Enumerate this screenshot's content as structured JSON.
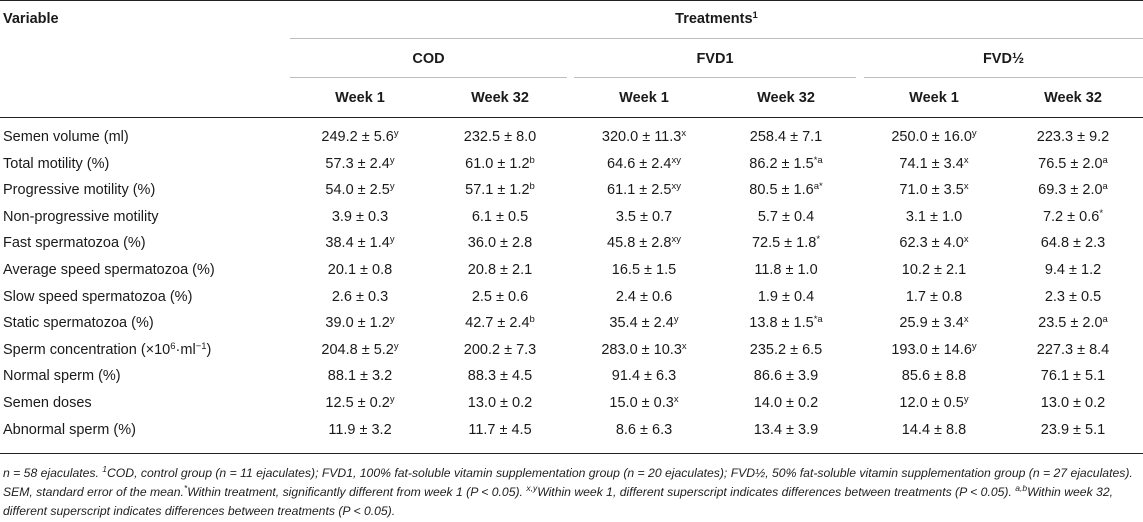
{
  "header": {
    "variable": "Variable",
    "treatments": "Treatments",
    "treatments_sup": "1",
    "groups": [
      "COD",
      "FVD1",
      "FVD½"
    ],
    "weeks": [
      "Week 1",
      "Week 32",
      "Week 1",
      "Week 32",
      "Week 1",
      "Week 32"
    ]
  },
  "rows": [
    {
      "label": "Semen volume (ml)",
      "cells": [
        [
          "249.2 ± 5.6",
          "y"
        ],
        [
          "232.5 ± 8.0",
          ""
        ],
        [
          "320.0 ± 11.3",
          "x"
        ],
        [
          "258.4 ± 7.1",
          ""
        ],
        [
          "250.0 ± 16.0",
          "y"
        ],
        [
          "223.3 ± 9.2",
          ""
        ]
      ]
    },
    {
      "label": "Total motility (%)",
      "cells": [
        [
          "57.3 ± 2.4",
          "y"
        ],
        [
          "61.0 ± 1.2",
          "b"
        ],
        [
          "64.6 ± 2.4",
          "xy"
        ],
        [
          "86.2 ± 1.5",
          "*a"
        ],
        [
          "74.1 ± 3.4",
          "x"
        ],
        [
          "76.5 ± 2.0",
          "a"
        ]
      ]
    },
    {
      "label": "Progressive motility (%)",
      "cells": [
        [
          "54.0 ± 2.5",
          "y"
        ],
        [
          "57.1 ± 1.2",
          "b"
        ],
        [
          "61.1 ± 2.5",
          "xy"
        ],
        [
          "80.5 ± 1.6",
          "a*"
        ],
        [
          "71.0 ± 3.5",
          "x"
        ],
        [
          "69.3 ± 2.0",
          "a"
        ]
      ]
    },
    {
      "label": "Non-progressive motility",
      "cells": [
        [
          "3.9 ± 0.3",
          ""
        ],
        [
          "6.1 ± 0.5",
          ""
        ],
        [
          "3.5 ± 0.7",
          ""
        ],
        [
          "5.7 ± 0.4",
          ""
        ],
        [
          "3.1 ± 1.0",
          ""
        ],
        [
          "7.2 ± 0.6",
          "*"
        ]
      ]
    },
    {
      "label": "Fast spermatozoa (%)",
      "cells": [
        [
          "38.4 ± 1.4",
          "y"
        ],
        [
          "36.0 ± 2.8",
          ""
        ],
        [
          "45.8 ± 2.8",
          "xy"
        ],
        [
          "72.5 ± 1.8",
          "*"
        ],
        [
          "62.3 ± 4.0",
          "x"
        ],
        [
          "64.8 ± 2.3",
          ""
        ]
      ]
    },
    {
      "label": "Average speed spermatozoa (%)",
      "cells": [
        [
          "20.1 ± 0.8",
          ""
        ],
        [
          "20.8 ± 2.1",
          ""
        ],
        [
          "16.5 ± 1.5",
          ""
        ],
        [
          "11.8 ± 1.0",
          ""
        ],
        [
          "10.2 ± 2.1",
          ""
        ],
        [
          "9.4 ± 1.2",
          ""
        ]
      ]
    },
    {
      "label": "Slow speed spermatozoa (%)",
      "cells": [
        [
          "2.6 ± 0.3",
          ""
        ],
        [
          "2.5 ± 0.6",
          ""
        ],
        [
          "2.4 ± 0.6",
          ""
        ],
        [
          "1.9 ± 0.4",
          ""
        ],
        [
          "1.7 ± 0.8",
          ""
        ],
        [
          "2.3 ± 0.5",
          ""
        ]
      ]
    },
    {
      "label": "Static spermatozoa (%)",
      "cells": [
        [
          "39.0 ± 1.2",
          "y"
        ],
        [
          "42.7 ± 2.4",
          "b"
        ],
        [
          "35.4 ± 2.4",
          "y"
        ],
        [
          "13.8 ± 1.5",
          "*a"
        ],
        [
          "25.9 ± 3.4",
          "x"
        ],
        [
          "23.5 ± 2.0",
          "a"
        ]
      ]
    },
    {
      "label": "Sperm concentration (×10",
      "label_sup": "6",
      "label_mid": "·ml",
      "label_sup2": "−1",
      "label_end": ")",
      "cells": [
        [
          "204.8 ± 5.2",
          "y"
        ],
        [
          "200.2 ± 7.3",
          ""
        ],
        [
          "283.0 ± 10.3",
          "x"
        ],
        [
          "235.2 ± 6.5",
          ""
        ],
        [
          "193.0 ± 14.6",
          "y"
        ],
        [
          "227.3 ± 8.4",
          ""
        ]
      ]
    },
    {
      "label": "Normal sperm (%)",
      "cells": [
        [
          "88.1 ± 3.2",
          ""
        ],
        [
          "88.3 ± 4.5",
          ""
        ],
        [
          "91.4 ± 6.3",
          ""
        ],
        [
          "86.6 ± 3.9",
          ""
        ],
        [
          "85.6 ± 8.8",
          ""
        ],
        [
          "76.1 ± 5.1",
          ""
        ]
      ]
    },
    {
      "label": "Semen doses",
      "cells": [
        [
          "12.5 ± 0.2",
          "y"
        ],
        [
          "13.0 ± 0.2",
          ""
        ],
        [
          "15.0 ± 0.3",
          "x"
        ],
        [
          "14.0 ± 0.2",
          ""
        ],
        [
          "12.0 ± 0.5",
          "y"
        ],
        [
          "13.0 ± 0.2",
          ""
        ]
      ]
    },
    {
      "label": "Abnormal sperm (%)",
      "cells": [
        [
          "11.9 ± 3.2",
          ""
        ],
        [
          "11.7 ± 4.5",
          ""
        ],
        [
          "8.6 ± 6.3",
          ""
        ],
        [
          "13.4 ± 3.9",
          ""
        ],
        [
          "14.4 ± 8.8",
          ""
        ],
        [
          "23.9 ± 5.1",
          ""
        ]
      ]
    }
  ],
  "notes": {
    "n1": "n = 58 ejaculates. ",
    "s1": "1",
    "n2": "COD, control group (n = 11 ejaculates); FVD1, 100% fat-soluble vitamin supplementation group (n = 20 ejaculates); FVD½, 50% fat-soluble vitamin supplementation group (n = 27 ejaculates). SEM, standard error of the mean.",
    "s2": "*",
    "n3": "Within treatment, significantly different from week 1 (P < 0.05). ",
    "s3": "x,y",
    "n4": "Within week 1, different superscript indicates differences between treatments (P < 0.05). ",
    "s4": "a,b",
    "n5": "Within week 32, different superscript indicates differences between treatments (P < 0.05)."
  }
}
